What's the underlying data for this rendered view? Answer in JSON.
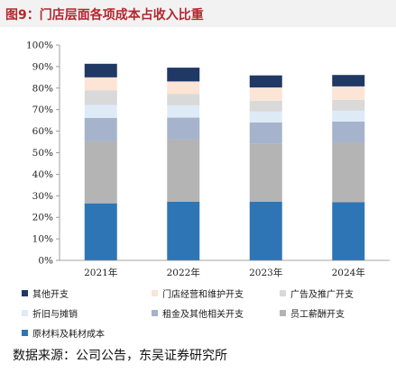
{
  "title": "图9：门店层面各项成本占收入比重",
  "source": "数据来源：公司公告，东吴证券研究所",
  "chart_data": {
    "type": "bar",
    "stacked": true,
    "categories": [
      "2021年",
      "2022年",
      "2023年",
      "2024年"
    ],
    "y_tick_labels": [
      "0%",
      "10%",
      "20%",
      "30%",
      "40%",
      "50%",
      "60%",
      "70%",
      "80%",
      "90%",
      "100%"
    ],
    "ylim": [
      0,
      100
    ],
    "y_unit": "%",
    "grid": false,
    "legend_position": "bottom",
    "series": [
      {
        "name": "原材料及耗材成本",
        "color": "#2e75b6",
        "values": [
          26.5,
          27.2,
          27.3,
          27.0
        ]
      },
      {
        "name": "员工薪酬开支",
        "color": "#b4b4b4",
        "values": [
          28.9,
          28.9,
          26.8,
          27.8
        ]
      },
      {
        "name": "租金及其他相关开支",
        "color": "#a6b3cc",
        "values": [
          10.8,
          10.2,
          10.0,
          9.7
        ]
      },
      {
        "name": "折旧与摊销",
        "color": "#deebf7",
        "values": [
          6.0,
          5.7,
          5.0,
          5.0
        ]
      },
      {
        "name": "广告及推广开支",
        "color": "#d9d9d9",
        "values": [
          6.8,
          5.2,
          5.0,
          5.0
        ]
      },
      {
        "name": "门店经营和维护开支",
        "color": "#fce4d6",
        "values": [
          6.0,
          5.9,
          6.2,
          6.3
        ]
      },
      {
        "name": "其他开支",
        "color": "#203864",
        "values": [
          6.3,
          6.4,
          5.6,
          5.3
        ]
      }
    ]
  }
}
